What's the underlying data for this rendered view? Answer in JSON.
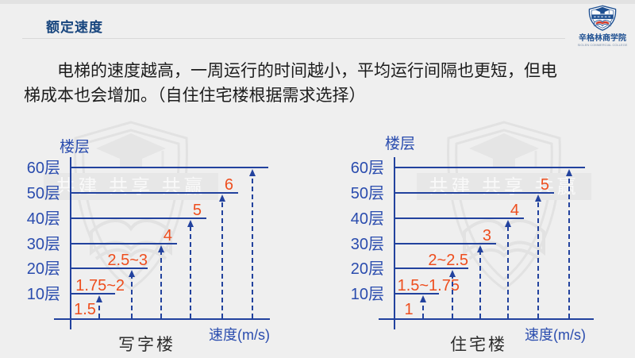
{
  "header": {
    "title": "额定速度",
    "logo": {
      "school_name": "辛格林商学院",
      "school_subtitle": "SIGLEN COMMERCIAL COLLEGE"
    }
  },
  "paragraph": {
    "line1": "电梯的速度越高，一周运行的时间越小，平均运行间隔也更短，但电",
    "line2": "梯成本也会增加。（自住住宅楼根据需求选择）"
  },
  "watermark": {
    "ribbon_text": "共建 共享 共赢"
  },
  "colors": {
    "axis_blue": "#22429e",
    "label_blue": "#2a4cae",
    "title_blue": "#17457e",
    "speed_red": "#ee4e1e",
    "background": "#efefef"
  },
  "chart_data": [
    {
      "type": "line",
      "title": "写字楼",
      "ylabel": "楼层",
      "xlabel": "速度(m/s)",
      "floors": [
        "10层",
        "20层",
        "30层",
        "40层",
        "50层",
        "60层"
      ],
      "speeds_m_s": [
        "1.75~2",
        "2.5~3",
        "4",
        "5",
        "6",
        ""
      ],
      "base_speed": "1.5",
      "legend_position": "none",
      "grid": false
    },
    {
      "type": "line",
      "title": "住宅楼",
      "ylabel": "楼层",
      "xlabel": "速度(m/s)",
      "floors": [
        "10层",
        "20层",
        "30层",
        "40层",
        "50层",
        "60层"
      ],
      "speeds_m_s": [
        "1.5~1.75",
        "2~2.5",
        "3",
        "4",
        "5",
        ""
      ],
      "base_speed": "1",
      "legend_position": "none",
      "grid": false
    }
  ]
}
